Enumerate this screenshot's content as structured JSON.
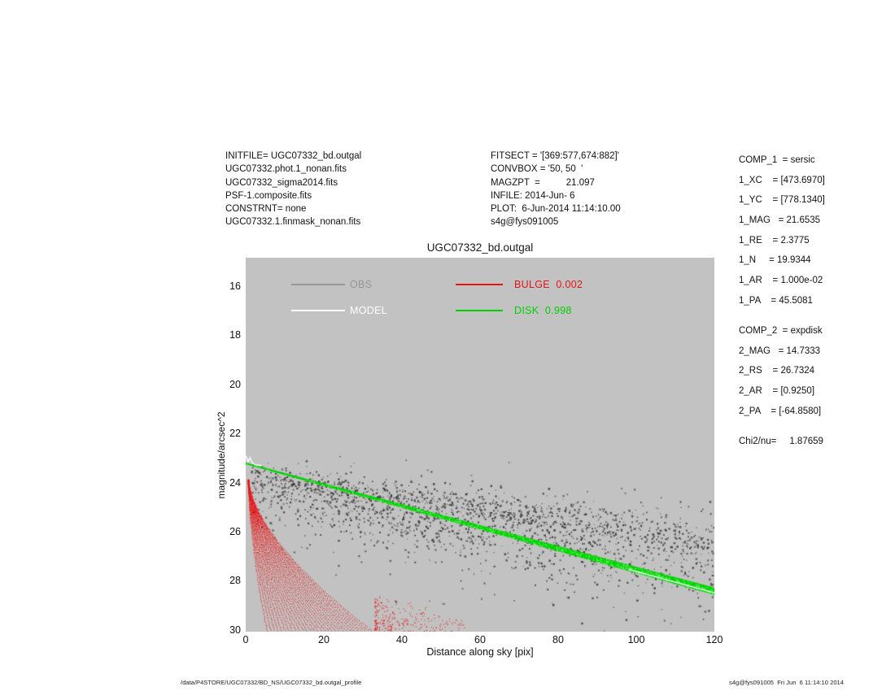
{
  "info_left": {
    "lines": [
      "INITFILE= UGC07332_bd.outgal",
      "UGC07332.phot.1_nonan.fits",
      "UGC07332_sigma2014.fits",
      "PSF-1.composite.fits",
      "CONSTRNT= none",
      "UGC07332.1.finmask_nonan.fits"
    ]
  },
  "info_center": {
    "lines": [
      "FITSECT = '[369:577,674:882]'",
      "CONVBOX = '50, 50  '",
      "MAGZPT  =          21.097",
      "INFILE: 2014-Jun- 6",
      "PLOT:  6-Jun-2014 11:14:10.00",
      "s4g@fys091005"
    ]
  },
  "fit_params": {
    "lines": [
      "COMP_1  = sersic",
      "1_XC    = [473.6970]",
      "1_YC    = [778.1340]",
      "1_MAG   = 21.6535",
      "1_RE    = 2.3775",
      "1_N     = 19.9344",
      "1_AR    = 1.000e-02",
      "1_PA    = 45.5081",
      "",
      "COMP_2  = expdisk",
      "2_MAG   = 14.7333",
      "2_RS    = 26.7324",
      "2_AR    = [0.9250]",
      "2_PA    = [-64.8580]",
      "",
      "Chi2/nu=     1.87659"
    ]
  },
  "footer": {
    "left": "/data/P4STORE/UGC07332/BD_NS/UGC07332_bd.outgal_profile",
    "right": "s4g@fys091005  Fri Jun  6 11:14:10 2014"
  },
  "chart_data": {
    "type": "scatter",
    "title": "UGC07332_bd.outgal",
    "xlabel": "Distance along sky [pix]",
    "ylabel": "magnitude/arcsec^2",
    "xlim": [
      0,
      120
    ],
    "ylim": [
      30.07,
      14.84
    ],
    "x_ticks": [
      0,
      20,
      40,
      60,
      80,
      100,
      120
    ],
    "y_ticks": [
      16,
      18,
      20,
      22,
      24,
      26,
      28,
      30
    ],
    "plot_bg": "#c2c2c2",
    "grid": false,
    "legend_position": "top-inside",
    "legend": [
      {
        "label": "OBS",
        "value": "",
        "color": "#969696"
      },
      {
        "label": "MODEL",
        "value": "",
        "color": "#ffffff"
      },
      {
        "label": "BULGE",
        "value": "0.002",
        "color": "#e41414"
      },
      {
        "label": "DISK",
        "value": "0.998",
        "color": "#00d000"
      }
    ],
    "series": [
      {
        "name": "OBS",
        "kind": "scatter",
        "color": "#3c3c3c",
        "seed": 7,
        "n_uniform": 1750,
        "n_mid": 350,
        "x_min": 1.5,
        "x_max": 120,
        "mid_lo": 15,
        "mid_hi": 95,
        "center_start": 24.0,
        "center_end": 26.8,
        "sigma_base": 0.55,
        "sigma_slope": 0.0042,
        "skew_down": 1.25,
        "skew_up": 0.7,
        "outlier_frac": 0.055,
        "outlier_max": 2.6
      },
      {
        "name": "MODEL",
        "kind": "line",
        "color": "#ffffff",
        "points": [
          [
            0,
            22.9
          ],
          [
            0.6,
            23.15
          ],
          [
            1.1,
            22.98
          ],
          [
            1.7,
            23.2
          ],
          [
            2.5,
            23.28
          ],
          [
            4.0,
            23.3
          ]
        ]
      },
      {
        "name": "BULGE",
        "kind": "fan",
        "color": "#e81414",
        "seed": 97,
        "x0": 0.6,
        "m0": 23.85,
        "depth": 6.3,
        "strands": 30,
        "d_base": 5.2,
        "s_min": 0.95,
        "s_max": 6.3,
        "exp": 0.62,
        "m_floor": 30.05,
        "cluster": {
          "n": 300,
          "x_min": 33,
          "x_max": 56,
          "m_top": 28.5,
          "m_bottom": 30.05,
          "seed": 11
        }
      },
      {
        "name": "DISK",
        "kind": "band",
        "color": "#00d400",
        "seed": 5,
        "m_start": 23.22,
        "m_end": 28.42,
        "w_start": 2,
        "w_end": 9,
        "speckle": "#b4ffb4",
        "white_split_from": 98
      }
    ]
  }
}
